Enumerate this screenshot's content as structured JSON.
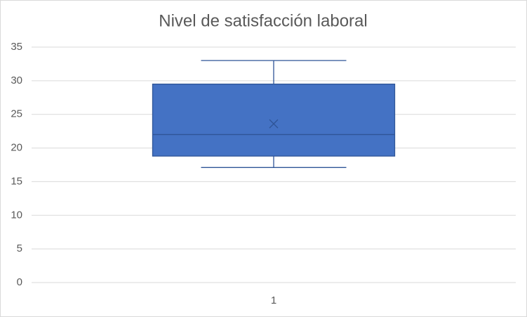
{
  "chart_data": {
    "type": "box",
    "title": "Nivel de satisfacción laboral",
    "categories": [
      "1"
    ],
    "boxes": [
      {
        "min": 17.1,
        "q1": 18.8,
        "median": 22,
        "q3": 29.5,
        "max": 33,
        "mean": 23.6
      }
    ],
    "color": "#4472c4",
    "edge_color": "#2f5597",
    "ylim": [
      0,
      35
    ],
    "yticks": [
      0,
      5,
      10,
      15,
      20,
      25,
      30,
      35
    ],
    "grid": true
  }
}
